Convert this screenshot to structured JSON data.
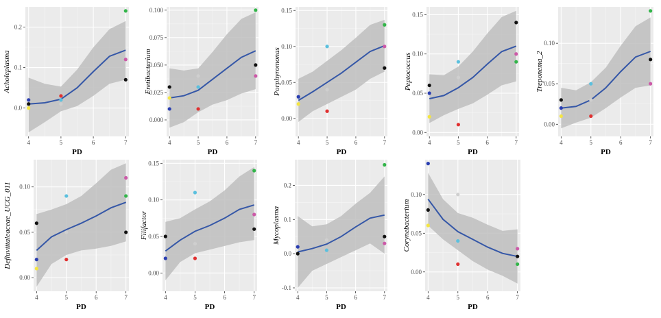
{
  "colors": {
    "panel_bg": "#ebebeb",
    "grid_major": "#ffffff",
    "grid_minor": "#f5f5f5",
    "ribbon": "#bebebe",
    "smooth_line": "#3557a7",
    "tick_text": "#4d4d4d",
    "points": {
      "black": "#111111",
      "blue": "#2a3eb1",
      "yellow": "#f4e542",
      "red": "#e03030",
      "cyan": "#5bc0de",
      "lightgray": "#cfcfcf",
      "green": "#33b54a",
      "pink": "#cc5aa8"
    }
  },
  "chart_data": [
    {
      "type": "scatter",
      "title": "",
      "xlabel": "PD",
      "ylabel": "Acholeplasma",
      "xlim": [
        3.9,
        7.1
      ],
      "ylim": [
        -0.07,
        0.25
      ],
      "x_ticks": [
        4,
        5,
        6,
        7
      ],
      "y_ticks": [
        0.0,
        0.1,
        0.2
      ],
      "y_tick_labels": [
        "0.0",
        "0.1",
        "0.2"
      ],
      "points": [
        {
          "x": 4,
          "y": 0.02,
          "color": "blue"
        },
        {
          "x": 4,
          "y": 0.01,
          "color": "black"
        },
        {
          "x": 4,
          "y": 0.0,
          "color": "yellow"
        },
        {
          "x": 5,
          "y": 0.03,
          "color": "red"
        },
        {
          "x": 5,
          "y": 0.02,
          "color": "cyan"
        },
        {
          "x": 5,
          "y": 0.01,
          "color": "lightgray"
        },
        {
          "x": 7,
          "y": 0.24,
          "color": "green"
        },
        {
          "x": 7,
          "y": 0.12,
          "color": "pink"
        },
        {
          "x": 7,
          "y": 0.07,
          "color": "black"
        }
      ],
      "smooth": {
        "x": [
          4,
          4.5,
          5,
          5.5,
          6,
          6.5,
          7
        ],
        "y": [
          0.01,
          0.013,
          0.022,
          0.05,
          0.09,
          0.128,
          0.143
        ],
        "lower": [
          -0.06,
          -0.035,
          -0.008,
          0.005,
          0.03,
          0.06,
          0.07
        ],
        "upper": [
          0.075,
          0.06,
          0.053,
          0.095,
          0.15,
          0.195,
          0.215
        ]
      }
    },
    {
      "type": "scatter",
      "title": "",
      "xlabel": "PD",
      "ylabel": "Fretibacterium",
      "xlim": [
        3.9,
        7.1
      ],
      "ylim": [
        -0.015,
        0.103
      ],
      "x_ticks": [
        4,
        5,
        6,
        7
      ],
      "y_ticks": [
        0.0,
        0.025,
        0.05,
        0.075,
        0.1
      ],
      "y_tick_labels": [
        "0.000",
        "0.025",
        "0.050",
        "0.075",
        "0.100"
      ],
      "points": [
        {
          "x": 4,
          "y": 0.03,
          "color": "black"
        },
        {
          "x": 4,
          "y": 0.02,
          "color": "yellow"
        },
        {
          "x": 4,
          "y": 0.01,
          "color": "blue"
        },
        {
          "x": 5,
          "y": 0.04,
          "color": "lightgray"
        },
        {
          "x": 5,
          "y": 0.03,
          "color": "cyan"
        },
        {
          "x": 5,
          "y": 0.01,
          "color": "red"
        },
        {
          "x": 7,
          "y": 0.1,
          "color": "green"
        },
        {
          "x": 7,
          "y": 0.05,
          "color": "black"
        },
        {
          "x": 7,
          "y": 0.04,
          "color": "pink"
        }
      ],
      "smooth": {
        "x": [
          4,
          4.5,
          5,
          5.5,
          6,
          6.5,
          7
        ],
        "y": [
          0.02,
          0.022,
          0.027,
          0.037,
          0.047,
          0.057,
          0.063
        ],
        "lower": [
          -0.007,
          -0.002,
          0.007,
          0.014,
          0.018,
          0.024,
          0.028
        ],
        "upper": [
          0.047,
          0.045,
          0.047,
          0.062,
          0.078,
          0.092,
          0.098
        ]
      }
    },
    {
      "type": "scatter",
      "title": "",
      "xlabel": "PD",
      "ylabel": "Porphyromonas",
      "xlim": [
        3.9,
        7.1
      ],
      "ylim": [
        -0.025,
        0.155
      ],
      "x_ticks": [
        4,
        5,
        6,
        7
      ],
      "y_ticks": [
        0.0,
        0.05,
        0.1,
        0.15
      ],
      "y_tick_labels": [
        "0.00",
        "0.05",
        "0.10",
        "0.15"
      ],
      "points": [
        {
          "x": 4,
          "y": 0.03,
          "color": "blue"
        },
        {
          "x": 4,
          "y": 0.02,
          "color": "yellow"
        },
        {
          "x": 5,
          "y": 0.1,
          "color": "cyan"
        },
        {
          "x": 5,
          "y": 0.04,
          "color": "lightgray"
        },
        {
          "x": 5,
          "y": 0.01,
          "color": "red"
        },
        {
          "x": 7,
          "y": 0.13,
          "color": "green"
        },
        {
          "x": 7,
          "y": 0.1,
          "color": "pink"
        },
        {
          "x": 7,
          "y": 0.07,
          "color": "black"
        }
      ],
      "smooth": {
        "x": [
          4,
          4.5,
          5,
          5.5,
          6,
          6.5,
          7
        ],
        "y": [
          0.025,
          0.037,
          0.05,
          0.063,
          0.078,
          0.093,
          0.101
        ],
        "lower": [
          -0.005,
          0.01,
          0.02,
          0.03,
          0.04,
          0.055,
          0.065
        ],
        "upper": [
          0.055,
          0.065,
          0.08,
          0.095,
          0.112,
          0.13,
          0.137
        ]
      }
    },
    {
      "type": "scatter",
      "title": "",
      "xlabel": "PD",
      "ylabel": "Peptococcus",
      "xlim": [
        3.9,
        7.1
      ],
      "ylim": [
        -0.005,
        0.16
      ],
      "x_ticks": [
        4,
        5,
        6,
        7
      ],
      "y_ticks": [
        0.0,
        0.05,
        0.1,
        0.15
      ],
      "y_tick_labels": [
        "0.00",
        "0.05",
        "0.10",
        "0.15"
      ],
      "points": [
        {
          "x": 4,
          "y": 0.06,
          "color": "black"
        },
        {
          "x": 4,
          "y": 0.05,
          "color": "blue"
        },
        {
          "x": 4,
          "y": 0.02,
          "color": "yellow"
        },
        {
          "x": 5,
          "y": 0.09,
          "color": "cyan"
        },
        {
          "x": 5,
          "y": 0.07,
          "color": "lightgray"
        },
        {
          "x": 5,
          "y": 0.01,
          "color": "red"
        },
        {
          "x": 7,
          "y": 0.14,
          "color": "black"
        },
        {
          "x": 7,
          "y": 0.1,
          "color": "pink"
        },
        {
          "x": 7,
          "y": 0.09,
          "color": "green"
        }
      ],
      "smooth": {
        "x": [
          4,
          4.5,
          5,
          5.5,
          6,
          6.5,
          7
        ],
        "y": [
          0.043,
          0.047,
          0.057,
          0.07,
          0.087,
          0.103,
          0.11
        ],
        "lower": [
          0.012,
          0.022,
          0.03,
          0.037,
          0.048,
          0.06,
          0.065
        ],
        "upper": [
          0.074,
          0.073,
          0.084,
          0.103,
          0.126,
          0.147,
          0.155
        ]
      }
    },
    {
      "type": "scatter",
      "title": "",
      "xlabel": "PD",
      "ylabel": "Treponema_2",
      "xlim": [
        3.9,
        7.1
      ],
      "ylim": [
        -0.015,
        0.145
      ],
      "x_ticks": [
        4,
        5,
        6,
        7
      ],
      "y_ticks": [
        0.0,
        0.05,
        0.1
      ],
      "y_tick_labels": [
        "0.00",
        "0.05",
        "0.10"
      ],
      "points": [
        {
          "x": 4,
          "y": 0.03,
          "color": "black"
        },
        {
          "x": 4,
          "y": 0.02,
          "color": "blue"
        },
        {
          "x": 4,
          "y": 0.01,
          "color": "yellow"
        },
        {
          "x": 5,
          "y": 0.05,
          "color": "cyan"
        },
        {
          "x": 5,
          "y": 0.03,
          "color": "lightgray"
        },
        {
          "x": 5,
          "y": 0.01,
          "color": "red"
        },
        {
          "x": 7,
          "y": 0.14,
          "color": "green"
        },
        {
          "x": 7,
          "y": 0.08,
          "color": "black"
        },
        {
          "x": 7,
          "y": 0.05,
          "color": "pink"
        }
      ],
      "smooth": {
        "x": [
          4,
          4.5,
          5,
          5.5,
          6,
          6.5,
          7
        ],
        "y": [
          0.02,
          0.022,
          0.03,
          0.045,
          0.065,
          0.083,
          0.09
        ],
        "lower": [
          -0.005,
          0.002,
          0.008,
          0.02,
          0.033,
          0.045,
          0.048
        ],
        "upper": [
          0.045,
          0.042,
          0.052,
          0.07,
          0.097,
          0.121,
          0.132
        ]
      }
    },
    {
      "type": "scatter",
      "title": "",
      "xlabel": "PD",
      "ylabel": "Defluviitaleaceae_UCG_011",
      "xlim": [
        3.9,
        7.1
      ],
      "ylim": [
        -0.015,
        0.13
      ],
      "x_ticks": [
        4,
        5,
        6,
        7
      ],
      "y_ticks": [
        0.0,
        0.05,
        0.1
      ],
      "y_tick_labels": [
        "0.00",
        "0.05",
        "0.10"
      ],
      "points": [
        {
          "x": 4,
          "y": 0.06,
          "color": "black"
        },
        {
          "x": 4,
          "y": 0.02,
          "color": "blue"
        },
        {
          "x": 4,
          "y": 0.01,
          "color": "yellow"
        },
        {
          "x": 5,
          "y": 0.09,
          "color": "cyan"
        },
        {
          "x": 5,
          "y": 0.05,
          "color": "lightgray"
        },
        {
          "x": 5,
          "y": 0.02,
          "color": "red"
        },
        {
          "x": 7,
          "y": 0.11,
          "color": "pink"
        },
        {
          "x": 7,
          "y": 0.09,
          "color": "green"
        },
        {
          "x": 7,
          "y": 0.05,
          "color": "black"
        }
      ],
      "smooth": {
        "x": [
          4,
          4.5,
          5,
          5.5,
          6,
          6.5,
          7
        ],
        "y": [
          0.03,
          0.045,
          0.053,
          0.06,
          0.068,
          0.077,
          0.083
        ],
        "lower": [
          -0.01,
          0.015,
          0.025,
          0.03,
          0.032,
          0.035,
          0.04
        ],
        "upper": [
          0.07,
          0.075,
          0.081,
          0.09,
          0.104,
          0.119,
          0.126
        ]
      }
    },
    {
      "type": "scatter",
      "title": "",
      "xlabel": "PD",
      "ylabel": "Filifactor",
      "xlim": [
        3.9,
        7.1
      ],
      "ylim": [
        -0.025,
        0.155
      ],
      "x_ticks": [
        4,
        5,
        6,
        7
      ],
      "y_ticks": [
        0.0,
        0.05,
        0.1,
        0.15
      ],
      "y_tick_labels": [
        "0.00",
        "0.05",
        "0.10",
        "0.15"
      ],
      "points": [
        {
          "x": 4,
          "y": 0.05,
          "color": "black"
        },
        {
          "x": 4,
          "y": 0.02,
          "color": "blue"
        },
        {
          "x": 5,
          "y": 0.11,
          "color": "cyan"
        },
        {
          "x": 5,
          "y": 0.04,
          "color": "lightgray"
        },
        {
          "x": 5,
          "y": 0.02,
          "color": "red"
        },
        {
          "x": 7,
          "y": 0.14,
          "color": "green"
        },
        {
          "x": 7,
          "y": 0.08,
          "color": "pink"
        },
        {
          "x": 7,
          "y": 0.06,
          "color": "black"
        }
      ],
      "smooth": {
        "x": [
          4,
          4.5,
          5,
          5.5,
          6,
          6.5,
          7
        ],
        "y": [
          0.03,
          0.045,
          0.057,
          0.065,
          0.075,
          0.087,
          0.093
        ],
        "lower": [
          -0.01,
          0.015,
          0.027,
          0.032,
          0.037,
          0.042,
          0.045
        ],
        "upper": [
          0.07,
          0.075,
          0.087,
          0.098,
          0.113,
          0.132,
          0.145
        ]
      }
    },
    {
      "type": "scatter",
      "title": "",
      "xlabel": "PD",
      "ylabel": "Mycoplasma",
      "xlim": [
        3.9,
        7.1
      ],
      "ylim": [
        -0.11,
        0.275
      ],
      "x_ticks": [
        4,
        5,
        6,
        7
      ],
      "y_ticks": [
        -0.1,
        0.0,
        0.1,
        0.2
      ],
      "y_tick_labels": [
        "-0.1",
        "0.0",
        "0.1",
        "0.2"
      ],
      "points": [
        {
          "x": 4,
          "y": 0.02,
          "color": "blue"
        },
        {
          "x": 4,
          "y": 0.0,
          "color": "black"
        },
        {
          "x": 5,
          "y": 0.04,
          "color": "lightgray"
        },
        {
          "x": 5,
          "y": 0.01,
          "color": "cyan"
        },
        {
          "x": 7,
          "y": 0.26,
          "color": "green"
        },
        {
          "x": 7,
          "y": 0.05,
          "color": "black"
        },
        {
          "x": 7,
          "y": 0.03,
          "color": "pink"
        }
      ],
      "smooth": {
        "x": [
          4,
          4.5,
          5,
          5.5,
          6,
          6.5,
          7
        ],
        "y": [
          0.005,
          0.015,
          0.028,
          0.05,
          0.078,
          0.104,
          0.113
        ],
        "lower": [
          -0.1,
          -0.05,
          -0.03,
          -0.01,
          0.01,
          0.03,
          0.0
        ],
        "upper": [
          0.11,
          0.08,
          0.086,
          0.11,
          0.146,
          0.178,
          0.226
        ]
      }
    },
    {
      "type": "scatter",
      "title": "",
      "xlabel": "PD",
      "ylabel": "Corynebacterium",
      "xlim": [
        3.9,
        7.1
      ],
      "ylim": [
        -0.025,
        0.145
      ],
      "x_ticks": [
        4,
        5,
        6,
        7
      ],
      "y_ticks": [
        0.0,
        0.05,
        0.1
      ],
      "y_tick_labels": [
        "0.00",
        "0.05",
        "0.10"
      ],
      "points": [
        {
          "x": 4,
          "y": 0.14,
          "color": "blue"
        },
        {
          "x": 4,
          "y": 0.08,
          "color": "black"
        },
        {
          "x": 4,
          "y": 0.06,
          "color": "yellow"
        },
        {
          "x": 5,
          "y": 0.1,
          "color": "lightgray"
        },
        {
          "x": 5,
          "y": 0.04,
          "color": "cyan"
        },
        {
          "x": 5,
          "y": 0.01,
          "color": "red"
        },
        {
          "x": 7,
          "y": 0.03,
          "color": "pink"
        },
        {
          "x": 7,
          "y": 0.02,
          "color": "black"
        },
        {
          "x": 7,
          "y": 0.01,
          "color": "green"
        }
      ],
      "smooth": {
        "x": [
          4,
          4.5,
          5,
          5.5,
          6,
          6.5,
          7
        ],
        "y": [
          0.094,
          0.068,
          0.052,
          0.042,
          0.032,
          0.024,
          0.02
        ],
        "lower": [
          0.06,
          0.042,
          0.028,
          0.014,
          0.003,
          -0.005,
          -0.015
        ],
        "upper": [
          0.128,
          0.094,
          0.076,
          0.07,
          0.061,
          0.053,
          0.055
        ]
      }
    }
  ]
}
